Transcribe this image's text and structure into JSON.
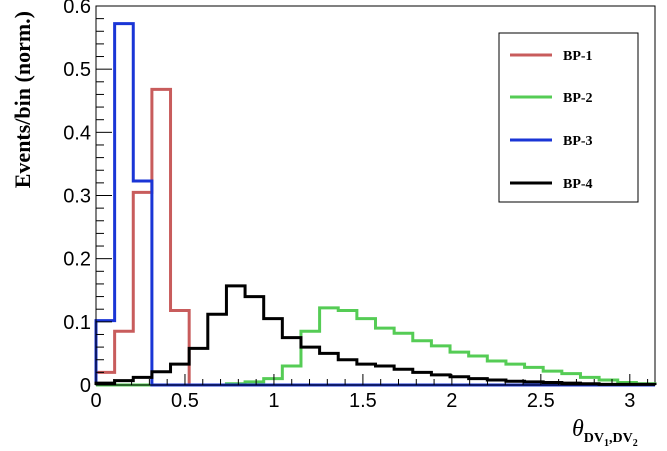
{
  "chart_data": {
    "type": "line",
    "style": "step-histogram",
    "xlabel": "θ",
    "xlabel_sub_prefix": "DV",
    "xlabel_sub_1": "1",
    "xlabel_sub_mid": ",DV",
    "xlabel_sub_2": "2",
    "ylabel": "Events/bin (norm.)",
    "xlim": [
      0,
      3.14159
    ],
    "ylim": [
      0,
      0.6
    ],
    "x_ticks": [
      0,
      0.5,
      1,
      1.5,
      2,
      2.5,
      3
    ],
    "x_tick_labels": [
      "0",
      "0.5",
      "1",
      "1.5",
      "2",
      "2.5",
      "3"
    ],
    "y_ticks": [
      0,
      0.1,
      0.2,
      0.3,
      0.4,
      0.5,
      0.6
    ],
    "y_tick_labels": [
      "0",
      "0.1",
      "0.2",
      "0.3",
      "0.4",
      "0.5",
      "0.6"
    ],
    "bin_width": 0.10472,
    "n_bins": 30,
    "legend_position": "top-right",
    "grid": false,
    "series": [
      {
        "name": "BP-1",
        "color": "#c85c5c",
        "values": [
          0.02,
          0.085,
          0.305,
          0.468,
          0.118,
          0,
          0,
          0,
          0,
          0,
          0,
          0,
          0,
          0,
          0,
          0,
          0,
          0,
          0,
          0,
          0,
          0,
          0,
          0,
          0,
          0,
          0,
          0,
          0,
          0
        ]
      },
      {
        "name": "BP-2",
        "color": "#55cc55",
        "values": [
          0,
          0,
          0,
          0,
          0,
          0,
          0,
          0.002,
          0.005,
          0.01,
          0.03,
          0.085,
          0.122,
          0.118,
          0.105,
          0.09,
          0.082,
          0.07,
          0.062,
          0.052,
          0.046,
          0.038,
          0.033,
          0.028,
          0.022,
          0.018,
          0.012,
          0.008,
          0.004,
          0.002
        ]
      },
      {
        "name": "BP-3",
        "color": "#1a35d6",
        "values": [
          0.102,
          0.572,
          0.323,
          0,
          0,
          0,
          0,
          0,
          0,
          0,
          0,
          0,
          0,
          0,
          0,
          0,
          0,
          0,
          0,
          0,
          0,
          0,
          0,
          0,
          0,
          0,
          0,
          0,
          0,
          0
        ]
      },
      {
        "name": "BP-4",
        "color": "#000000",
        "values": [
          0.003,
          0.007,
          0.012,
          0.021,
          0.033,
          0.058,
          0.112,
          0.157,
          0.14,
          0.105,
          0.075,
          0.06,
          0.05,
          0.04,
          0.033,
          0.03,
          0.025,
          0.02,
          0.016,
          0.013,
          0.01,
          0.008,
          0.006,
          0.005,
          0.004,
          0.003,
          0.002,
          0.001,
          0.001,
          0.001
        ]
      }
    ]
  }
}
